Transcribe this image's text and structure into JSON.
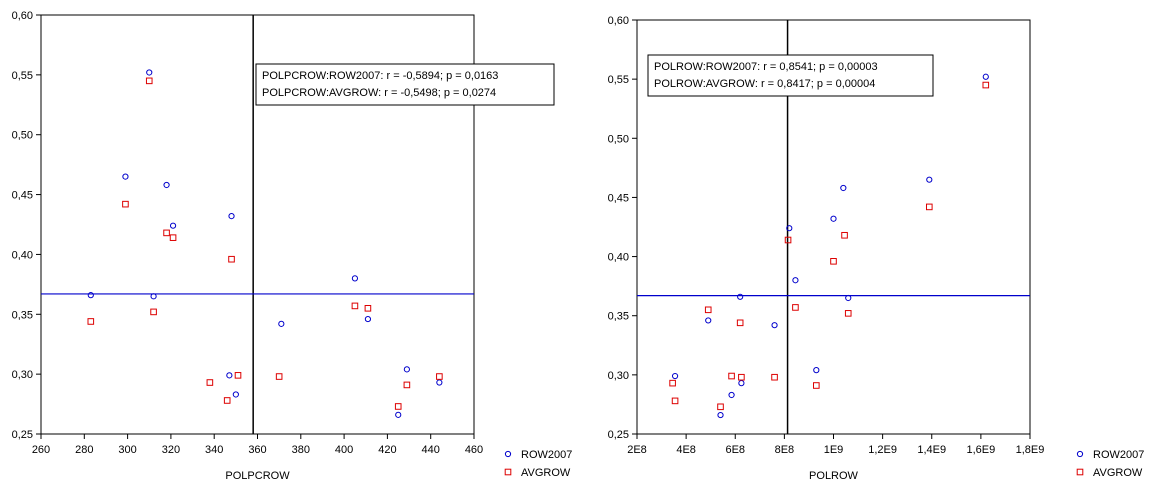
{
  "chart_data": [
    {
      "type": "scatter",
      "xlabel": "POLPCROW",
      "ylabel": "",
      "xlim": [
        260,
        460
      ],
      "ylim": [
        0.25,
        0.6
      ],
      "x_ticks": [
        260,
        280,
        300,
        320,
        340,
        360,
        380,
        400,
        420,
        440,
        460
      ],
      "x_tick_labels": [
        "260",
        "280",
        "300",
        "320",
        "340",
        "360",
        "380",
        "400",
        "420",
        "440",
        "460"
      ],
      "y_ticks": [
        0.25,
        0.3,
        0.35,
        0.4,
        0.45,
        0.5,
        0.55,
        0.6
      ],
      "y_tick_labels": [
        "0,25",
        "0,30",
        "0,35",
        "0,40",
        "0,45",
        "0,50",
        "0,55",
        "0,60"
      ],
      "mean_x": 358,
      "mean_y": 0.367,
      "annotation": [
        "POLPCROW:ROW2007:   r = -0,5894; p = 0,0163",
        "POLPCROW:AVGROW:   r = -0,5498; p = 0,0274"
      ],
      "series": [
        {
          "name": "ROW2007",
          "marker": "circle",
          "color": "#0000cc",
          "points": [
            [
              283,
              0.366
            ],
            [
              299,
              0.465
            ],
            [
              310,
              0.552
            ],
            [
              312,
              0.365
            ],
            [
              318,
              0.458
            ],
            [
              321,
              0.424
            ],
            [
              348,
              0.432
            ],
            [
              347,
              0.299
            ],
            [
              350,
              0.283
            ],
            [
              371,
              0.342
            ],
            [
              405,
              0.38
            ],
            [
              411,
              0.346
            ],
            [
              425,
              0.266
            ],
            [
              429,
              0.304
            ],
            [
              444,
              0.293
            ]
          ]
        },
        {
          "name": "AVGROW",
          "marker": "square",
          "color": "#dd0000",
          "points": [
            [
              283,
              0.344
            ],
            [
              299,
              0.442
            ],
            [
              310,
              0.545
            ],
            [
              312,
              0.352
            ],
            [
              318,
              0.418
            ],
            [
              321,
              0.414
            ],
            [
              348,
              0.396
            ],
            [
              346,
              0.278
            ],
            [
              351,
              0.299
            ],
            [
              338,
              0.293
            ],
            [
              370,
              0.298
            ],
            [
              405,
              0.357
            ],
            [
              411,
              0.355
            ],
            [
              425,
              0.273
            ],
            [
              429,
              0.291
            ],
            [
              444,
              0.298
            ]
          ]
        }
      ]
    },
    {
      "type": "scatter",
      "xlabel": "POLROW",
      "ylabel": "",
      "xlim": [
        200000000,
        1800000000
      ],
      "ylim": [
        0.25,
        0.6
      ],
      "x_ticks": [
        200000000,
        400000000,
        600000000,
        800000000,
        1000000000,
        1200000000,
        1400000000,
        1600000000,
        1800000000
      ],
      "x_tick_labels": [
        "2E8",
        "4E8",
        "6E8",
        "8E8",
        "1E9",
        "1,2E9",
        "1,4E9",
        "1,6E9",
        "1,8E9"
      ],
      "y_ticks": [
        0.25,
        0.3,
        0.35,
        0.4,
        0.45,
        0.5,
        0.55,
        0.6
      ],
      "y_tick_labels": [
        "0,25",
        "0,30",
        "0,35",
        "0,40",
        "0,45",
        "0,50",
        "0,55",
        "0,60"
      ],
      "mean_x": 813000000,
      "mean_y": 0.367,
      "annotation": [
        "POLROW:ROW2007:   r = 0,8541; p = 0,00003",
        "POLROW:AVGROW:   r = 0,8417; p = 0,00004"
      ],
      "series": [
        {
          "name": "ROW2007",
          "marker": "circle",
          "color": "#0000cc",
          "points": [
            [
              355000000,
              0.299
            ],
            [
              490000000,
              0.346
            ],
            [
              540000000,
              0.266
            ],
            [
              585000000,
              0.283
            ],
            [
              620000000,
              0.366
            ],
            [
              625000000,
              0.293
            ],
            [
              760000000,
              0.342
            ],
            [
              820000000,
              0.424
            ],
            [
              845000000,
              0.38
            ],
            [
              930000000,
              0.304
            ],
            [
              1000000000,
              0.432
            ],
            [
              1040000000,
              0.458
            ],
            [
              1060000000,
              0.365
            ],
            [
              1390000000,
              0.465
            ],
            [
              1620000000,
              0.552
            ]
          ]
        },
        {
          "name": "AVGROW",
          "marker": "square",
          "color": "#dd0000",
          "points": [
            [
              345000000,
              0.293
            ],
            [
              355000000,
              0.278
            ],
            [
              490000000,
              0.355
            ],
            [
              540000000,
              0.273
            ],
            [
              585000000,
              0.299
            ],
            [
              620000000,
              0.344
            ],
            [
              625000000,
              0.298
            ],
            [
              760000000,
              0.298
            ],
            [
              815000000,
              0.414
            ],
            [
              845000000,
              0.357
            ],
            [
              930000000,
              0.291
            ],
            [
              1000000000,
              0.396
            ],
            [
              1045000000,
              0.418
            ],
            [
              1060000000,
              0.352
            ],
            [
              1390000000,
              0.442
            ],
            [
              1620000000,
              0.545
            ]
          ]
        }
      ]
    }
  ],
  "legend": [
    {
      "label": "ROW2007",
      "marker": "circle",
      "color": "#0000cc"
    },
    {
      "label": "AVGROW",
      "marker": "square",
      "color": "#dd0000"
    }
  ]
}
